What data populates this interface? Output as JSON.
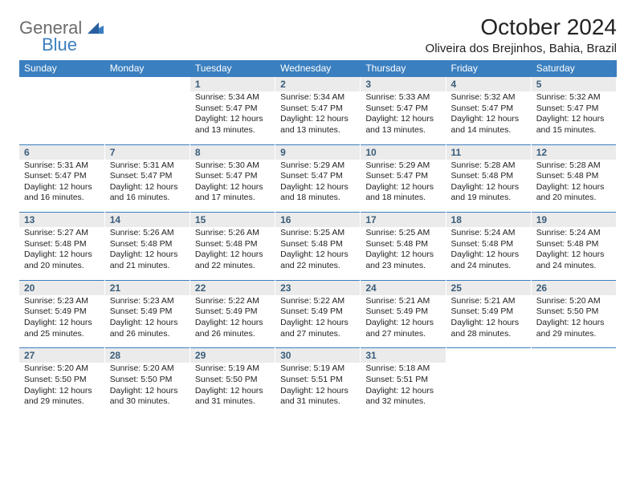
{
  "logo": {
    "text1": "General",
    "text2": "Blue"
  },
  "title": "October 2024",
  "location": "Oliveira dos Brejinhos, Bahia, Brazil",
  "colors": {
    "header_bg": "#3a7fbf",
    "header_fg": "#ffffff",
    "date_bg": "#ebebeb",
    "date_fg": "#3a5d7a",
    "page_bg": "#ffffff",
    "text": "#222222",
    "logo_gray": "#6c6c6c",
    "logo_blue": "#3a7fbf"
  },
  "day_names": [
    "Sunday",
    "Monday",
    "Tuesday",
    "Wednesday",
    "Thursday",
    "Friday",
    "Saturday"
  ],
  "weeks": [
    {
      "dates": [
        "",
        "",
        "1",
        "2",
        "3",
        "4",
        "5"
      ],
      "details": [
        null,
        null,
        {
          "sunrise": "Sunrise: 5:34 AM",
          "sunset": "Sunset: 5:47 PM",
          "daylight": "Daylight: 12 hours and 13 minutes."
        },
        {
          "sunrise": "Sunrise: 5:34 AM",
          "sunset": "Sunset: 5:47 PM",
          "daylight": "Daylight: 12 hours and 13 minutes."
        },
        {
          "sunrise": "Sunrise: 5:33 AM",
          "sunset": "Sunset: 5:47 PM",
          "daylight": "Daylight: 12 hours and 13 minutes."
        },
        {
          "sunrise": "Sunrise: 5:32 AM",
          "sunset": "Sunset: 5:47 PM",
          "daylight": "Daylight: 12 hours and 14 minutes."
        },
        {
          "sunrise": "Sunrise: 5:32 AM",
          "sunset": "Sunset: 5:47 PM",
          "daylight": "Daylight: 12 hours and 15 minutes."
        }
      ]
    },
    {
      "dates": [
        "6",
        "7",
        "8",
        "9",
        "10",
        "11",
        "12"
      ],
      "details": [
        {
          "sunrise": "Sunrise: 5:31 AM",
          "sunset": "Sunset: 5:47 PM",
          "daylight": "Daylight: 12 hours and 16 minutes."
        },
        {
          "sunrise": "Sunrise: 5:31 AM",
          "sunset": "Sunset: 5:47 PM",
          "daylight": "Daylight: 12 hours and 16 minutes."
        },
        {
          "sunrise": "Sunrise: 5:30 AM",
          "sunset": "Sunset: 5:47 PM",
          "daylight": "Daylight: 12 hours and 17 minutes."
        },
        {
          "sunrise": "Sunrise: 5:29 AM",
          "sunset": "Sunset: 5:47 PM",
          "daylight": "Daylight: 12 hours and 18 minutes."
        },
        {
          "sunrise": "Sunrise: 5:29 AM",
          "sunset": "Sunset: 5:47 PM",
          "daylight": "Daylight: 12 hours and 18 minutes."
        },
        {
          "sunrise": "Sunrise: 5:28 AM",
          "sunset": "Sunset: 5:48 PM",
          "daylight": "Daylight: 12 hours and 19 minutes."
        },
        {
          "sunrise": "Sunrise: 5:28 AM",
          "sunset": "Sunset: 5:48 PM",
          "daylight": "Daylight: 12 hours and 20 minutes."
        }
      ]
    },
    {
      "dates": [
        "13",
        "14",
        "15",
        "16",
        "17",
        "18",
        "19"
      ],
      "details": [
        {
          "sunrise": "Sunrise: 5:27 AM",
          "sunset": "Sunset: 5:48 PM",
          "daylight": "Daylight: 12 hours and 20 minutes."
        },
        {
          "sunrise": "Sunrise: 5:26 AM",
          "sunset": "Sunset: 5:48 PM",
          "daylight": "Daylight: 12 hours and 21 minutes."
        },
        {
          "sunrise": "Sunrise: 5:26 AM",
          "sunset": "Sunset: 5:48 PM",
          "daylight": "Daylight: 12 hours and 22 minutes."
        },
        {
          "sunrise": "Sunrise: 5:25 AM",
          "sunset": "Sunset: 5:48 PM",
          "daylight": "Daylight: 12 hours and 22 minutes."
        },
        {
          "sunrise": "Sunrise: 5:25 AM",
          "sunset": "Sunset: 5:48 PM",
          "daylight": "Daylight: 12 hours and 23 minutes."
        },
        {
          "sunrise": "Sunrise: 5:24 AM",
          "sunset": "Sunset: 5:48 PM",
          "daylight": "Daylight: 12 hours and 24 minutes."
        },
        {
          "sunrise": "Sunrise: 5:24 AM",
          "sunset": "Sunset: 5:48 PM",
          "daylight": "Daylight: 12 hours and 24 minutes."
        }
      ]
    },
    {
      "dates": [
        "20",
        "21",
        "22",
        "23",
        "24",
        "25",
        "26"
      ],
      "details": [
        {
          "sunrise": "Sunrise: 5:23 AM",
          "sunset": "Sunset: 5:49 PM",
          "daylight": "Daylight: 12 hours and 25 minutes."
        },
        {
          "sunrise": "Sunrise: 5:23 AM",
          "sunset": "Sunset: 5:49 PM",
          "daylight": "Daylight: 12 hours and 26 minutes."
        },
        {
          "sunrise": "Sunrise: 5:22 AM",
          "sunset": "Sunset: 5:49 PM",
          "daylight": "Daylight: 12 hours and 26 minutes."
        },
        {
          "sunrise": "Sunrise: 5:22 AM",
          "sunset": "Sunset: 5:49 PM",
          "daylight": "Daylight: 12 hours and 27 minutes."
        },
        {
          "sunrise": "Sunrise: 5:21 AM",
          "sunset": "Sunset: 5:49 PM",
          "daylight": "Daylight: 12 hours and 27 minutes."
        },
        {
          "sunrise": "Sunrise: 5:21 AM",
          "sunset": "Sunset: 5:49 PM",
          "daylight": "Daylight: 12 hours and 28 minutes."
        },
        {
          "sunrise": "Sunrise: 5:20 AM",
          "sunset": "Sunset: 5:50 PM",
          "daylight": "Daylight: 12 hours and 29 minutes."
        }
      ]
    },
    {
      "dates": [
        "27",
        "28",
        "29",
        "30",
        "31",
        "",
        ""
      ],
      "details": [
        {
          "sunrise": "Sunrise: 5:20 AM",
          "sunset": "Sunset: 5:50 PM",
          "daylight": "Daylight: 12 hours and 29 minutes."
        },
        {
          "sunrise": "Sunrise: 5:20 AM",
          "sunset": "Sunset: 5:50 PM",
          "daylight": "Daylight: 12 hours and 30 minutes."
        },
        {
          "sunrise": "Sunrise: 5:19 AM",
          "sunset": "Sunset: 5:50 PM",
          "daylight": "Daylight: 12 hours and 31 minutes."
        },
        {
          "sunrise": "Sunrise: 5:19 AM",
          "sunset": "Sunset: 5:51 PM",
          "daylight": "Daylight: 12 hours and 31 minutes."
        },
        {
          "sunrise": "Sunrise: 5:18 AM",
          "sunset": "Sunset: 5:51 PM",
          "daylight": "Daylight: 12 hours and 32 minutes."
        },
        null,
        null
      ]
    }
  ]
}
